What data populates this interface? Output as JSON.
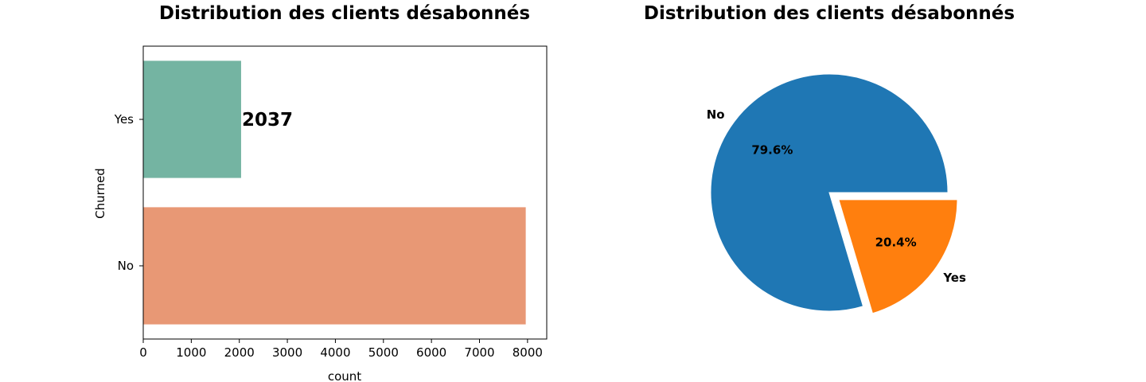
{
  "chart_data": [
    {
      "type": "bar",
      "orientation": "horizontal",
      "title": "Distribution des clients désabonnés",
      "xlabel": "count",
      "ylabel": "Churned",
      "categories": [
        "Yes",
        "No"
      ],
      "values": [
        2037,
        7963
      ],
      "bar_labels": [
        "2037",
        ""
      ],
      "colors": [
        "#74b4a2",
        "#e89875"
      ],
      "xlim": [
        0,
        8400
      ],
      "xticks": [
        0,
        1000,
        2000,
        3000,
        4000,
        5000,
        6000,
        7000,
        8000
      ],
      "grid": false
    },
    {
      "type": "pie",
      "title": "Distribution des clients désabonnés",
      "labels": [
        "No",
        "Yes"
      ],
      "values": [
        79.6,
        20.4
      ],
      "value_labels": [
        "79.6%",
        "20.4%"
      ],
      "colors": [
        "#1f77b4",
        "#ff7f0e"
      ],
      "explode": [
        0,
        0.1
      ]
    }
  ]
}
